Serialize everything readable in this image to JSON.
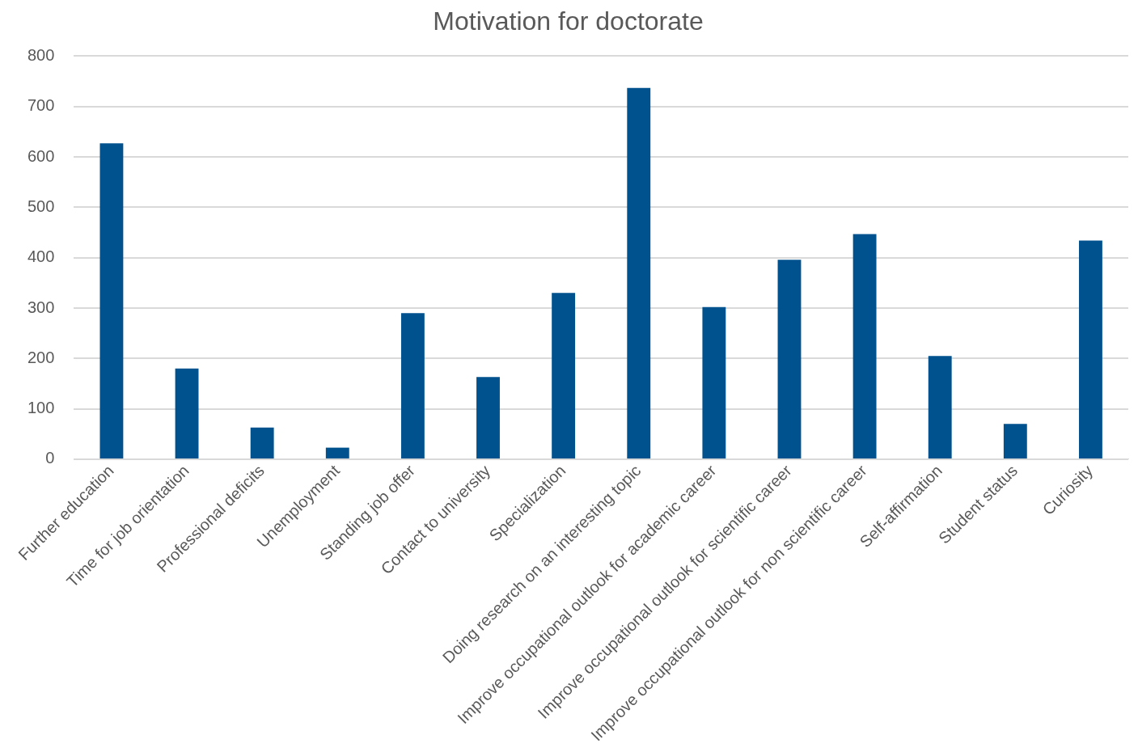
{
  "chart_data": {
    "type": "bar",
    "title": "Motivation for doctorate",
    "categories": [
      "Further education",
      "Time for job orientation",
      "Professional deficits",
      "Unemployment",
      "Standing job offer",
      "Contact to university",
      "Specialization",
      "Doing research on an interesting topic",
      "Improve occupational outlook for academic career",
      "Improve occupational outlook for scientific career",
      "Improve occupational outlook for non scientific career",
      "Self-affirmation",
      "Student status",
      "Curiosity"
    ],
    "values": [
      627,
      180,
      63,
      23,
      290,
      163,
      330,
      737,
      302,
      396,
      447,
      205,
      70,
      434
    ],
    "color": "#00528f",
    "ylim": [
      0,
      800
    ],
    "yticks": [
      0,
      100,
      200,
      300,
      400,
      500,
      600,
      700,
      800
    ],
    "grid": "y",
    "legend": false
  }
}
